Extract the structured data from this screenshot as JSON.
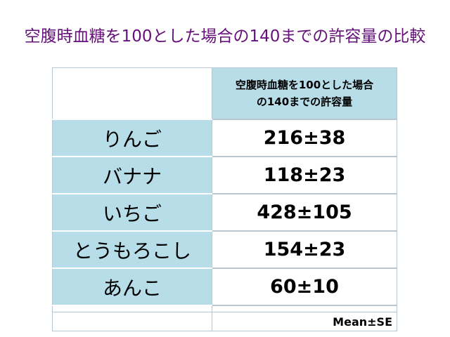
{
  "title": "空腹時血糖を100とした場合の140までの許容量の比較",
  "table": {
    "header": [
      "空腹時血糖を100とした場合",
      "の140までの許容量"
    ],
    "rows": [
      {
        "food": "りんご",
        "value": "216±38"
      },
      {
        "food": "バナナ",
        "value": "118±23"
      },
      {
        "food": "いちご",
        "value": "428±105"
      },
      {
        "food": "とうもろこし",
        "value": "154±23"
      },
      {
        "food": "あんこ",
        "value": "60±10"
      }
    ],
    "note": "Mean±SE"
  },
  "colors": {
    "title": "#66107a",
    "cell_fill": "#b7dde8",
    "grid": "#b9c6cf",
    "divider": "#000000"
  }
}
